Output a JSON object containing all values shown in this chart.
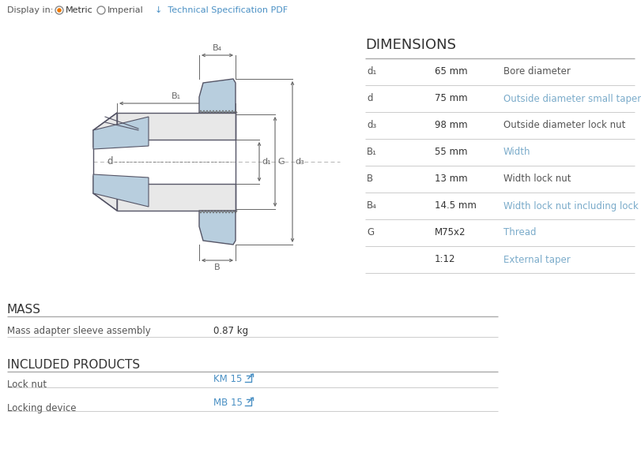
{
  "bg_color": "#ffffff",
  "text_color": "#333333",
  "dim_color": "#555555",
  "orange_color": "#e8860a",
  "blue_link_color": "#4a90c4",
  "line_color": "#bbbbbb",
  "sleeve_fill": "#b8cede",
  "sleeve_edge": "#555566",
  "body_fill": "#e8e8e8",
  "body_edge": "#555566",
  "dim_line_color": "#666666",
  "dimensions_title": "DIMENSIONS",
  "mass_title": "MASS",
  "included_title": "INCLUDED PRODUCTS",
  "dimensions_rows": [
    {
      "param": "d₁",
      "value": "65 mm",
      "description": "Bore diameter",
      "param_color": "#555555",
      "desc_color": "#555555",
      "val_color": "#333333"
    },
    {
      "param": "d",
      "value": "75 mm",
      "description": "Outside diameter small taper",
      "param_color": "#555555",
      "desc_color": "#7aabca",
      "val_color": "#333333"
    },
    {
      "param": "d₃",
      "value": "98 mm",
      "description": "Outside diameter lock nut",
      "param_color": "#555555",
      "desc_color": "#555555",
      "val_color": "#333333"
    },
    {
      "param": "B₁",
      "value": "55 mm",
      "description": "Width",
      "param_color": "#555555",
      "desc_color": "#7aabca",
      "val_color": "#333333"
    },
    {
      "param": "B",
      "value": "13 mm",
      "description": "Width lock nut",
      "param_color": "#555555",
      "desc_color": "#555555",
      "val_color": "#333333"
    },
    {
      "param": "B₄",
      "value": "14.5 mm",
      "description": "Width lock nut including lock washer",
      "param_color": "#555555",
      "desc_color": "#7aabca",
      "val_color": "#333333"
    },
    {
      "param": "G",
      "value": "M75x2",
      "description": "Thread",
      "param_color": "#555555",
      "desc_color": "#7aabca",
      "val_color": "#333333"
    },
    {
      "param": "",
      "value": "1:12",
      "description": "External taper",
      "param_color": "#555555",
      "desc_color": "#7aabca",
      "val_color": "#333333"
    }
  ],
  "mass_rows": [
    {
      "label": "Mass adapter sleeve assembly",
      "value": "0.87 kg"
    }
  ],
  "included_rows": [
    {
      "label": "Lock nut",
      "value": "KM 15",
      "value_color": "#4a90c4"
    },
    {
      "label": "Locking device",
      "value": "MB 15",
      "value_color": "#4a90c4"
    }
  ]
}
